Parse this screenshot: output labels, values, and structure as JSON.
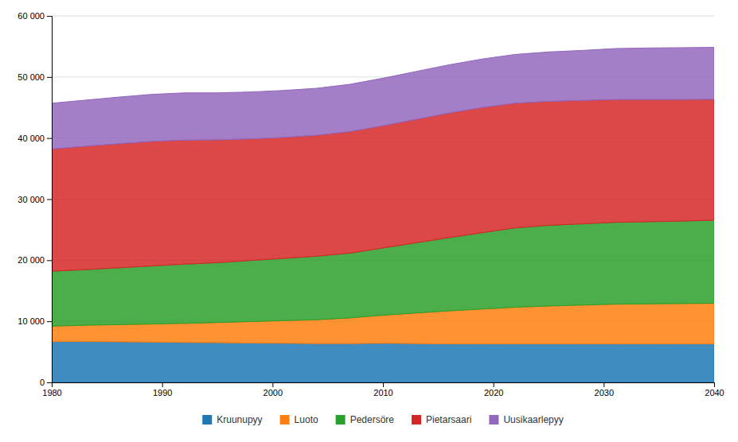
{
  "chart_data": {
    "type": "area",
    "stacked": true,
    "x": [
      1980,
      1983,
      1986,
      1989,
      1992,
      1995,
      1998,
      2001,
      2004,
      2007,
      2010,
      2013,
      2016,
      2019,
      2022,
      2025,
      2028,
      2031,
      2034,
      2037,
      2040
    ],
    "series": [
      {
        "name": "Kruunupyy",
        "values": [
          6700,
          6700,
          6650,
          6600,
          6550,
          6500,
          6450,
          6400,
          6350,
          6350,
          6400,
          6350,
          6300,
          6300,
          6300,
          6300,
          6300,
          6300,
          6300,
          6300,
          6300
        ]
      },
      {
        "name": "Luoto",
        "values": [
          2500,
          2650,
          2800,
          2950,
          3100,
          3300,
          3500,
          3700,
          3900,
          4200,
          4600,
          5000,
          5400,
          5700,
          6000,
          6200,
          6350,
          6500,
          6550,
          6600,
          6650
        ]
      },
      {
        "name": "Pedersöre",
        "values": [
          9000,
          9100,
          9300,
          9500,
          9700,
          9800,
          10000,
          10200,
          10400,
          10600,
          11000,
          11500,
          12000,
          12500,
          13000,
          13200,
          13300,
          13400,
          13450,
          13500,
          13600
        ]
      },
      {
        "name": "Pietarsaari",
        "values": [
          20000,
          20200,
          20300,
          20400,
          20300,
          20100,
          19900,
          19800,
          19800,
          19900,
          20000,
          20200,
          20400,
          20500,
          20400,
          20300,
          20200,
          20100,
          20000,
          19900,
          19800
        ]
      },
      {
        "name": "Uusikaarlepyy",
        "values": [
          7500,
          7550,
          7650,
          7700,
          7750,
          7700,
          7700,
          7700,
          7700,
          7750,
          7800,
          7850,
          7900,
          7950,
          8000,
          8100,
          8200,
          8350,
          8450,
          8500,
          8500
        ]
      }
    ],
    "xlim": [
      1980,
      2040
    ],
    "xticks": [
      1980,
      1990,
      2000,
      2010,
      2020,
      2030,
      2040
    ],
    "ylim": [
      0,
      60000
    ],
    "yticks": [
      0,
      {
        "value": 10000,
        "label": "10 000"
      },
      {
        "value": 20000,
        "label": "20 000"
      },
      {
        "value": 30000,
        "label": "30 000"
      },
      {
        "value": 40000,
        "label": "40 000"
      },
      {
        "value": 50000,
        "label": "50 000"
      },
      {
        "value": 60000,
        "label": "60 000"
      }
    ],
    "grid": true,
    "legend": "bottom"
  }
}
